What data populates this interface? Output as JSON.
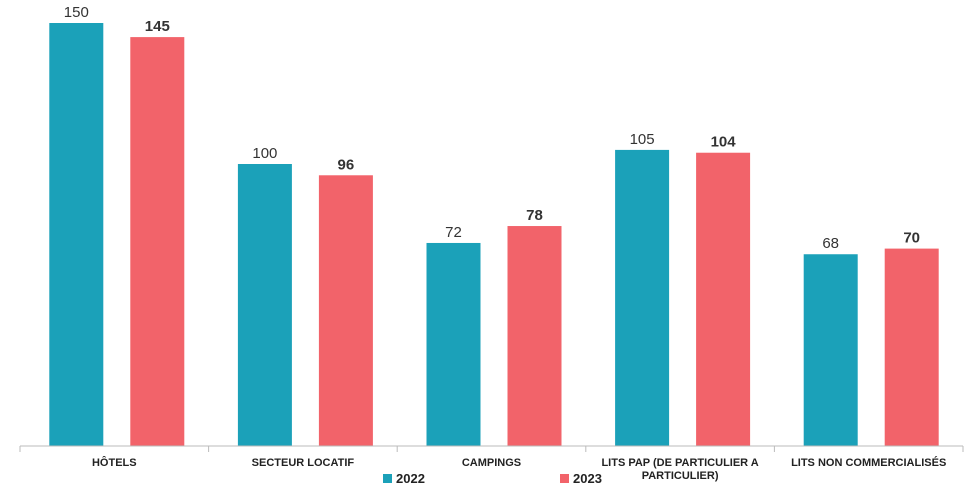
{
  "chart_data": {
    "type": "bar",
    "categories": [
      "HÔTELS",
      "SECTEUR LOCATIF",
      "CAMPINGS",
      "LITS PAP (DE PARTICULIER A PARTICULIER)",
      "LITS NON COMMERCIALISÉS"
    ],
    "series": [
      {
        "name": "2022",
        "color": "#1ba1b9",
        "values": [
          150,
          100,
          72,
          105,
          68
        ]
      },
      {
        "name": "2023",
        "color": "#f2636a",
        "values": [
          145,
          96,
          78,
          104,
          70
        ]
      }
    ]
  }
}
